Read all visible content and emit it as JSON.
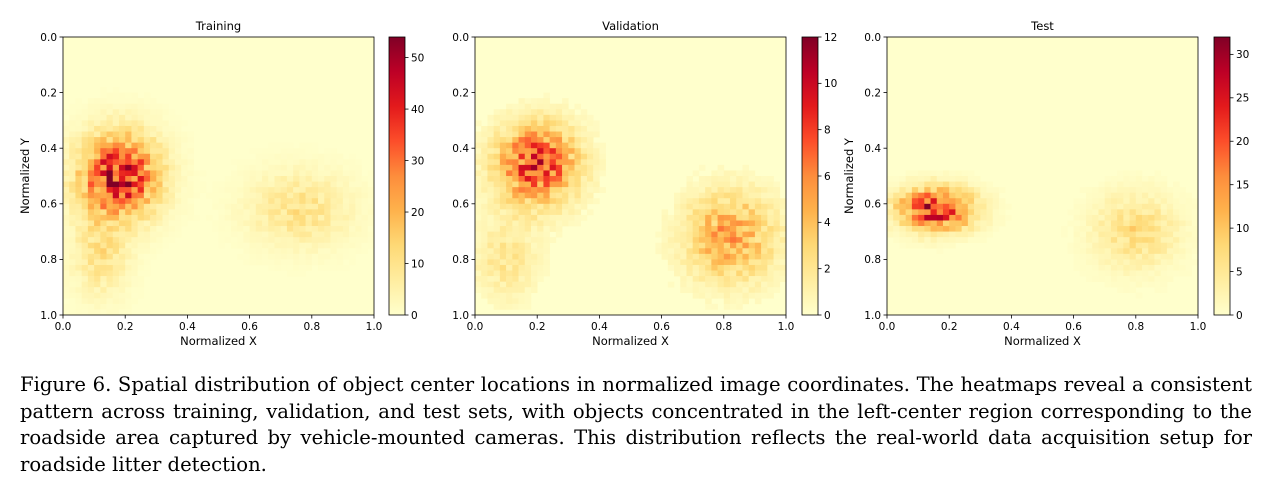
{
  "chart_data": [
    {
      "type": "heatmap",
      "title": "Training",
      "xlabel": "Normalized X",
      "ylabel": "Normalized Y",
      "xlim": [
        0,
        1
      ],
      "ylim": [
        1,
        0
      ],
      "xticks": [
        "0.0",
        "0.2",
        "0.4",
        "0.6",
        "0.8",
        "1.0"
      ],
      "yticks": [
        "0.0",
        "0.2",
        "0.4",
        "0.6",
        "0.8",
        "1.0"
      ],
      "colorbar": {
        "min": 0,
        "max": 54,
        "ticks": [
          0,
          10,
          20,
          30,
          40,
          50
        ],
        "colormap": "YlOrRd"
      },
      "bins": [
        50,
        50
      ],
      "clusters": [
        {
          "x": 0.18,
          "y": 0.5,
          "sx": 0.085,
          "sy": 0.1,
          "peak": 42
        },
        {
          "x": 0.12,
          "y": 0.78,
          "sx": 0.06,
          "sy": 0.1,
          "peak": 10
        },
        {
          "x": 0.76,
          "y": 0.62,
          "sx": 0.11,
          "sy": 0.09,
          "peak": 10
        }
      ]
    },
    {
      "type": "heatmap",
      "title": "Validation",
      "xlabel": "Normalized X",
      "ylabel": "",
      "xlim": [
        0,
        1
      ],
      "ylim": [
        1,
        0
      ],
      "xticks": [
        "0.0",
        "0.2",
        "0.4",
        "0.6",
        "0.8",
        "1.0"
      ],
      "yticks": [
        "0.0",
        "0.2",
        "0.4",
        "0.6",
        "0.8",
        "1.0"
      ],
      "colorbar": {
        "min": 0,
        "max": 12,
        "ticks": [
          0,
          2,
          4,
          6,
          8,
          10,
          12
        ],
        "colormap": "YlOrRd"
      },
      "bins": [
        50,
        50
      ],
      "clusters": [
        {
          "x": 0.2,
          "y": 0.46,
          "sx": 0.09,
          "sy": 0.1,
          "peak": 8
        },
        {
          "x": 0.82,
          "y": 0.72,
          "sx": 0.1,
          "sy": 0.11,
          "peak": 5
        },
        {
          "x": 0.1,
          "y": 0.8,
          "sx": 0.07,
          "sy": 0.1,
          "peak": 2
        }
      ]
    },
    {
      "type": "heatmap",
      "title": "Test",
      "xlabel": "Normalized X",
      "ylabel": "Normalized Y",
      "xlim": [
        0,
        1
      ],
      "ylim": [
        1,
        0
      ],
      "xticks": [
        "0.0",
        "0.2",
        "0.4",
        "0.6",
        "0.8",
        "1.0"
      ],
      "yticks": [
        "0.0",
        "0.2",
        "0.4",
        "0.6",
        "0.8",
        "1.0"
      ],
      "colorbar": {
        "min": 0,
        "max": 32,
        "ticks": [
          0,
          5,
          10,
          15,
          20,
          25,
          30
        ],
        "colormap": "YlOrRd"
      },
      "bins": [
        50,
        50
      ],
      "clusters": [
        {
          "x": 0.16,
          "y": 0.62,
          "sx": 0.08,
          "sy": 0.05,
          "peak": 26
        },
        {
          "x": 0.8,
          "y": 0.7,
          "sx": 0.09,
          "sy": 0.09,
          "peak": 7
        }
      ]
    }
  ],
  "caption": "Figure 6. Spatial distribution of object center locations in normalized image coordinates. The heatmaps reveal a consistent pattern across training, validation, and test sets, with objects concentrated in the left-center region corresponding to the roadside area captured by vehicle-mounted cameras. This distribution reflects the real-world data acquisition setup for roadside litter detection."
}
